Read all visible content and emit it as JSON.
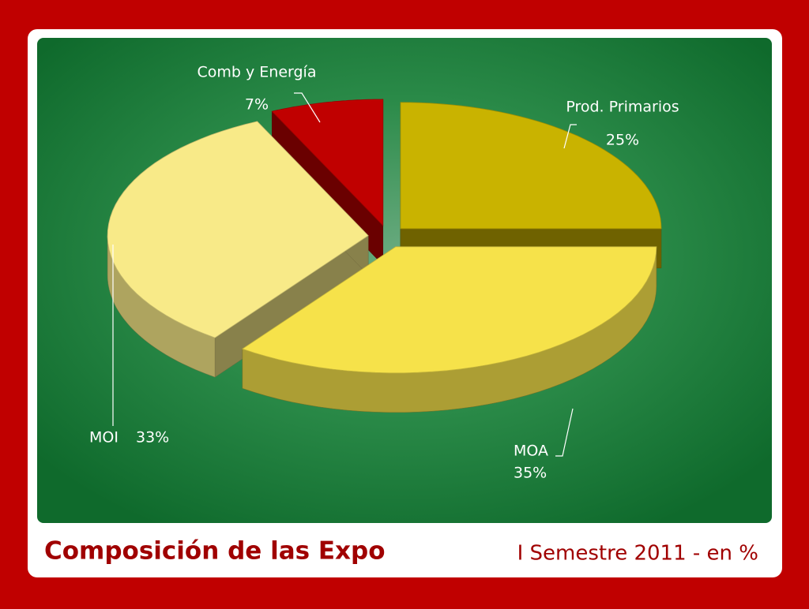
{
  "chart_data": {
    "type": "pie",
    "title": "Composición de las Expo",
    "subtitle": "I Semestre 2011 - en %",
    "categories": [
      "Prod. Primarios",
      "MOA",
      "MOI",
      "Comb y Energía"
    ],
    "values": [
      25,
      35,
      33,
      7
    ],
    "value_labels": [
      "25%",
      "35%",
      "33%",
      "7%"
    ],
    "colors": [
      "#c9b300",
      "#f6e24a",
      "#f8ea88",
      "#c00000"
    ]
  }
}
